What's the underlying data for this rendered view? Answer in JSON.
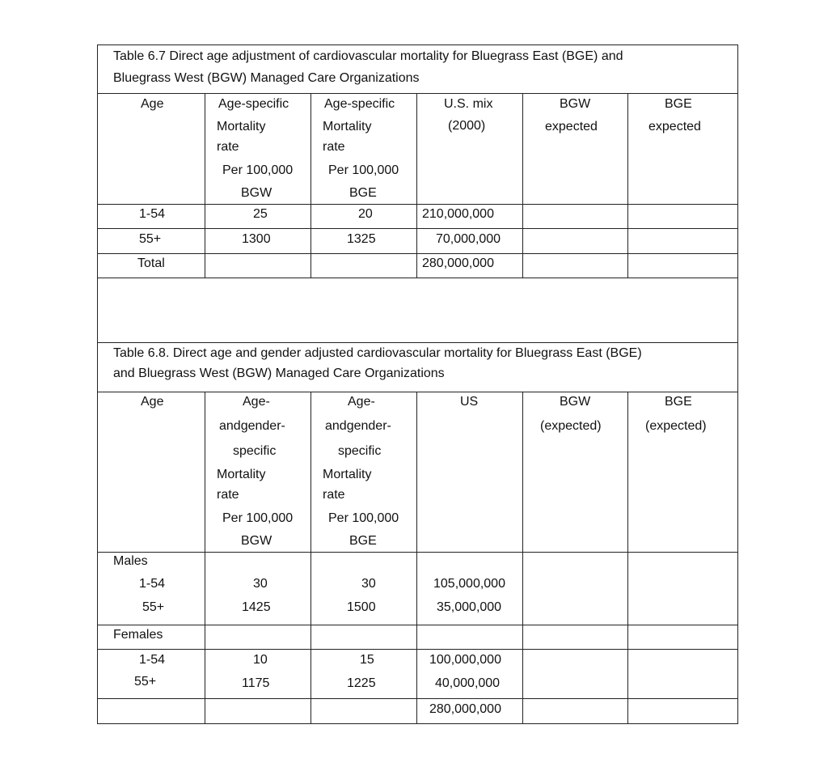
{
  "table67": {
    "title_line1": "Table 6.7 Direct age adjustment of cardiovascular mortality for Bluegrass East (BGE) and",
    "title_line2": "Bluegrass West (BGW) Managed Care Organizations",
    "headers": {
      "age": "Age",
      "bgw_rate": [
        "Age-specific",
        "Mortality",
        "rate",
        "Per 100,000",
        "BGW"
      ],
      "bge_rate": [
        "Age-specific",
        "Mortality",
        "rate",
        "Per 100,000",
        "BGE"
      ],
      "us_mix": [
        "U.S. mix",
        "(2000)"
      ],
      "bgw_expected": [
        "BGW",
        "expected"
      ],
      "bge_expected": [
        "BGE",
        "expected"
      ]
    },
    "rows": [
      {
        "age": "1-54",
        "bgw": "25",
        "bge": "20",
        "us": "210,000,000"
      },
      {
        "age": "55+",
        "bgw": "1300",
        "bge": "1325",
        "us": "70,000,000"
      },
      {
        "age": "Total",
        "bgw": "",
        "bge": "",
        "us": "280,000,000"
      }
    ]
  },
  "table68": {
    "title_line1": "Table 6.8. Direct age and gender adjusted cardiovascular mortality for Bluegrass East (BGE)",
    "title_line2": "and Bluegrass West (BGW) Managed Care Organizations",
    "headers": {
      "age": "Age",
      "bgw_rate": [
        "Age-",
        "andgender-",
        "specific",
        "Mortality",
        "rate",
        "Per 100,000",
        "BGW"
      ],
      "bge_rate": [
        "Age-",
        "andgender-",
        "specific",
        "Mortality",
        "rate",
        "Per 100,000",
        "BGE"
      ],
      "us": "US",
      "bgw_expected": [
        "BGW",
        "(expected)"
      ],
      "bge_expected": [
        "BGE",
        "(expected)"
      ]
    },
    "males": {
      "label": "Males",
      "rows": [
        {
          "age": "1-54",
          "bgw": "30",
          "bge": "30",
          "us": "105,000,000"
        },
        {
          "age": "55+",
          "bgw": "1425",
          "bge": "1500",
          "us": "35,000,000"
        }
      ]
    },
    "females": {
      "label": "Females",
      "rows": [
        {
          "age": "1-54",
          "bgw": "10",
          "bge": "15",
          "us": "100,000,000"
        },
        {
          "age": "55+",
          "bgw": "1175",
          "bge": "1225",
          "us": "40,000,000"
        }
      ]
    },
    "total_us": "280,000,000"
  }
}
